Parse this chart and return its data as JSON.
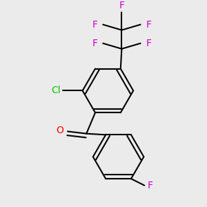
{
  "bg_color": "#ebebeb",
  "bond_color": "#000000",
  "bond_width": 1.5,
  "dbo": 0.018,
  "atom_colors": {
    "F": "#cc00cc",
    "Cl": "#00cc00",
    "O": "#ff0000",
    "C": "#000000"
  },
  "font_size": 10
}
